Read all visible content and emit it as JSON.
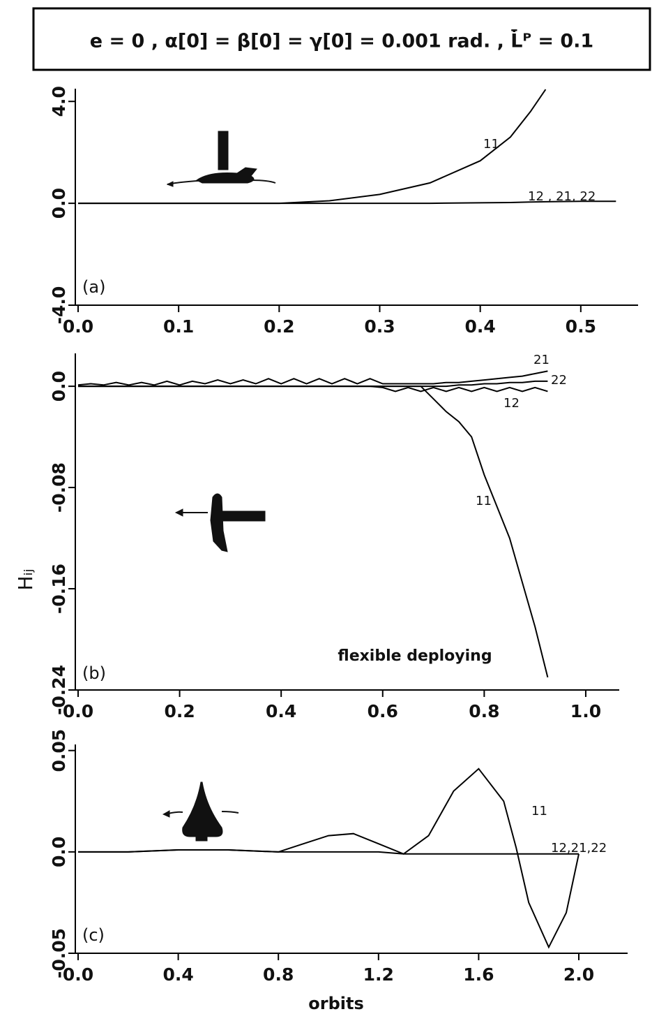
{
  "header": {
    "text": "e = 0  ,   α[0] = β[0] = γ[0] = 0.001 rad.   ,  L̇̄ᴾ =  0.1"
  },
  "chart_data": [
    {
      "type": "line",
      "panel_label": "(a)",
      "x": [
        0,
        0.05,
        0.1,
        0.15,
        0.2,
        0.25,
        0.3,
        0.35,
        0.4,
        0.43,
        0.45,
        0.465,
        0.5,
        0.535
      ],
      "series": [
        {
          "name": "11",
          "color": "#000000",
          "values": [
            0,
            0,
            0,
            0,
            0,
            0.1,
            0.35,
            0.8,
            1.67,
            2.6,
            3.6,
            4.47,
            null,
            null
          ]
        },
        {
          "name": "12 , 21, 22",
          "color": "#000000",
          "values": [
            0,
            0,
            0,
            0,
            0,
            0,
            0,
            0,
            0.02,
            0.03,
            0.05,
            0.06,
            0.08,
            0.08
          ]
        }
      ],
      "xlim": [
        0,
        0.557
      ],
      "ylim": [
        -4,
        4.5
      ],
      "xticks": [
        {
          "value": 0,
          "label": "0.0"
        },
        0.1,
        0.2,
        0.3,
        0.4,
        0.5
      ],
      "yticks": [
        {
          "value": -4,
          "label": "-4.0"
        },
        {
          "value": 0,
          "label": "0.0"
        },
        {
          "value": 4,
          "label": "4.0"
        }
      ],
      "grid": false
    },
    {
      "type": "line",
      "panel_label": "(b)",
      "annotation": "flexible  deploying",
      "ylabel": "Hᵢⱼ",
      "x": [
        0,
        0.025,
        0.05,
        0.075,
        0.1,
        0.125,
        0.15,
        0.175,
        0.2,
        0.225,
        0.25,
        0.275,
        0.3,
        0.325,
        0.35,
        0.375,
        0.4,
        0.425,
        0.45,
        0.475,
        0.5,
        0.525,
        0.55,
        0.575,
        0.6,
        0.625,
        0.65,
        0.675,
        0.7,
        0.725,
        0.75,
        0.775,
        0.8,
        0.825,
        0.85,
        0.875,
        0.9,
        0.925
      ],
      "series": [
        {
          "name": "21",
          "color": "#000000",
          "values": [
            0.001,
            0.002,
            0.001,
            0.003,
            0.001,
            0.003,
            0.001,
            0.004,
            0.001,
            0.004,
            0.002,
            0.005,
            0.002,
            0.005,
            0.002,
            0.006,
            0.002,
            0.006,
            0.002,
            0.006,
            0.002,
            0.006,
            0.002,
            0.006,
            0.002,
            0.002,
            0.002,
            0.002,
            0.002,
            0.003,
            0.003,
            0.004,
            0.005,
            0.006,
            0.007,
            0.008,
            0.01,
            0.012
          ]
        },
        {
          "name": "22",
          "color": "#000000",
          "values": [
            0,
            0,
            0,
            0,
            0,
            0,
            0,
            0,
            0,
            0,
            0,
            0,
            0,
            0,
            0,
            0,
            0,
            0,
            0,
            0,
            0,
            0,
            0,
            0,
            0,
            0,
            0,
            0,
            0,
            0,
            0.001,
            0.001,
            0.002,
            0.002,
            0.003,
            0.003,
            0.004,
            0.004
          ]
        },
        {
          "name": "12",
          "color": "#000000",
          "values": [
            0,
            0,
            0,
            0,
            0,
            0,
            0,
            0,
            0,
            0,
            0,
            0,
            0,
            0,
            0,
            0,
            0,
            0,
            0,
            0,
            0,
            0,
            0,
            0,
            -0.001,
            -0.004,
            -0.001,
            -0.004,
            -0.001,
            -0.004,
            -0.001,
            -0.004,
            -0.001,
            -0.004,
            -0.001,
            -0.004,
            -0.001,
            -0.004
          ]
        },
        {
          "name": "11",
          "color": "#000000",
          "values": [
            0,
            0,
            0,
            0,
            0,
            0,
            0,
            0,
            0,
            0,
            0,
            0,
            0,
            0,
            0,
            0,
            0,
            0,
            0,
            0,
            0,
            0,
            0,
            0,
            0,
            0,
            0,
            0,
            -0.01,
            -0.02,
            -0.028,
            -0.04,
            -0.07,
            -0.095,
            -0.12,
            -0.155,
            -0.19,
            -0.23
          ]
        }
      ],
      "xlim": [
        0,
        1.066
      ],
      "ylim": [
        -0.24,
        0.026
      ],
      "xticks": [
        {
          "value": 0,
          "label": "0.0"
        },
        0.2,
        0.4,
        0.6,
        0.8,
        {
          "value": 1,
          "label": "1.0"
        }
      ],
      "yticks": [
        {
          "value": -0.24,
          "label": "-0.24"
        },
        -0.16,
        -0.08,
        {
          "value": 0,
          "label": "0.0"
        }
      ],
      "grid": false
    },
    {
      "type": "line",
      "panel_label": "(c)",
      "xlabel": "orbits",
      "x": [
        0,
        0.2,
        0.4,
        0.5,
        0.6,
        0.8,
        0.9,
        1.0,
        1.1,
        1.2,
        1.3,
        1.4,
        1.5,
        1.6,
        1.7,
        1.75,
        1.8,
        1.88,
        1.95,
        2.0
      ],
      "series": [
        {
          "name": "11",
          "color": "#000000",
          "values": [
            0,
            0,
            0.001,
            0.001,
            0.001,
            0,
            0.004,
            0.008,
            0.009,
            0.004,
            -0.001,
            0.008,
            0.03,
            0.041,
            0.025,
            0.002,
            -0.025,
            -0.047,
            -0.03,
            -0.001
          ]
        },
        {
          "name": "12,21,22",
          "color": "#000000",
          "values": [
            0,
            0,
            0.001,
            0.001,
            0.001,
            0,
            0,
            0,
            0,
            0,
            -0.001,
            -0.001,
            -0.001,
            -0.001,
            -0.001,
            -0.001,
            -0.001,
            -0.001,
            -0.001,
            -0.001
          ]
        }
      ],
      "xlim": [
        0,
        2.195
      ],
      "ylim": [
        -0.05,
        0.053
      ],
      "xticks": [
        {
          "value": 0,
          "label": "0.0"
        },
        0.4,
        0.8,
        1.2,
        1.6,
        {
          "value": 2,
          "label": "2.0"
        }
      ],
      "yticks": [
        -0.05,
        {
          "value": 0,
          "label": "0.0"
        },
        0.05
      ],
      "grid": false
    }
  ]
}
